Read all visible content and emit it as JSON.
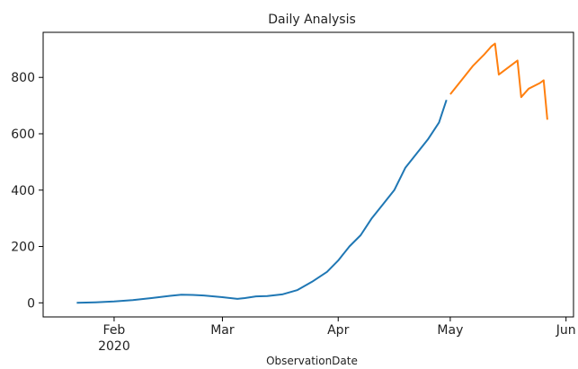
{
  "chart_data": {
    "type": "line",
    "title": "Daily Analysis",
    "xlabel": "ObservationDate",
    "ylabel": "",
    "x_axis": {
      "type": "date",
      "range": [
        "2020-01-13",
        "2020-06-03"
      ],
      "ticks": [
        {
          "date": "2020-02-01",
          "label": "Feb",
          "sublabel": "2020"
        },
        {
          "date": "2020-03-01",
          "label": "Mar",
          "sublabel": ""
        },
        {
          "date": "2020-04-01",
          "label": "Apr",
          "sublabel": ""
        },
        {
          "date": "2020-05-01",
          "label": "May",
          "sublabel": ""
        },
        {
          "date": "2020-06-01",
          "label": "Jun",
          "sublabel": ""
        }
      ]
    },
    "y_axis": {
      "range": [
        -50,
        960
      ],
      "ticks": [
        0,
        200,
        400,
        600,
        800
      ]
    },
    "grid": false,
    "legend": "none",
    "series": [
      {
        "color": "#1f77b4",
        "points": [
          [
            "2020-01-22",
            0
          ],
          [
            "2020-01-27",
            2
          ],
          [
            "2020-02-01",
            5
          ],
          [
            "2020-02-06",
            10
          ],
          [
            "2020-02-11",
            17
          ],
          [
            "2020-02-16",
            25
          ],
          [
            "2020-02-19",
            29
          ],
          [
            "2020-02-22",
            28
          ],
          [
            "2020-02-25",
            26
          ],
          [
            "2020-03-01",
            20
          ],
          [
            "2020-03-05",
            14
          ],
          [
            "2020-03-07",
            17
          ],
          [
            "2020-03-10",
            23
          ],
          [
            "2020-03-13",
            24
          ],
          [
            "2020-03-17",
            30
          ],
          [
            "2020-03-21",
            45
          ],
          [
            "2020-03-25",
            75
          ],
          [
            "2020-03-29",
            110
          ],
          [
            "2020-04-01",
            150
          ],
          [
            "2020-04-04",
            200
          ],
          [
            "2020-04-07",
            240
          ],
          [
            "2020-04-10",
            300
          ],
          [
            "2020-04-13",
            350
          ],
          [
            "2020-04-16",
            400
          ],
          [
            "2020-04-19",
            480
          ],
          [
            "2020-04-22",
            530
          ],
          [
            "2020-04-25",
            580
          ],
          [
            "2020-04-28",
            640
          ],
          [
            "2020-04-30",
            720
          ]
        ]
      },
      {
        "color": "#ff7f0e",
        "points": [
          [
            "2020-05-01",
            740
          ],
          [
            "2020-05-04",
            790
          ],
          [
            "2020-05-07",
            840
          ],
          [
            "2020-05-10",
            880
          ],
          [
            "2020-05-12",
            910
          ],
          [
            "2020-05-13",
            920
          ],
          [
            "2020-05-14",
            810
          ],
          [
            "2020-05-16",
            830
          ],
          [
            "2020-05-19",
            860
          ],
          [
            "2020-05-20",
            730
          ],
          [
            "2020-05-22",
            760
          ],
          [
            "2020-05-25",
            780
          ],
          [
            "2020-05-26",
            790
          ],
          [
            "2020-05-27",
            650
          ]
        ]
      }
    ]
  }
}
